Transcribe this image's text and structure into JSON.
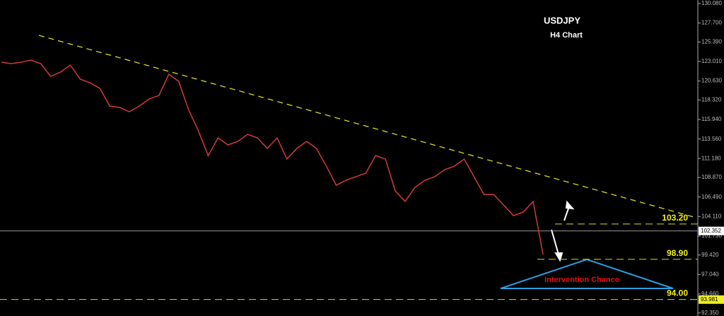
{
  "chart_data": {
    "type": "line",
    "title": "USDJPY",
    "subtitle": "H4 Chart",
    "annotation": "Intervention Chance",
    "series": [
      {
        "name": "USDJPY",
        "color": "#d23a3a",
        "values": [
          122.92,
          122.75,
          122.92,
          123.18,
          122.75,
          121.2,
          121.72,
          122.58,
          120.86,
          120.42,
          119.73,
          117.58,
          117.41,
          116.89,
          117.58,
          118.44,
          118.87,
          121.46,
          120.6,
          117.15,
          114.56,
          111.54,
          113.7,
          112.84,
          113.27,
          114.13,
          113.7,
          112.41,
          113.7,
          111.11,
          112.41,
          113.27,
          112.41,
          110.25,
          107.92,
          108.53,
          108.96,
          109.39,
          111.54,
          111.11,
          107.23,
          105.94,
          107.66,
          108.53,
          108.96,
          109.82,
          110.25,
          111.11,
          108.96,
          106.8,
          106.8,
          105.51,
          104.22,
          104.65,
          105.94,
          99.47
        ]
      }
    ],
    "trendline": [
      126.2,
      103.96
    ],
    "levels": [
      {
        "value": 103.2,
        "label": "103.20"
      },
      {
        "value": 98.9,
        "label": "98.90"
      },
      {
        "value": 94,
        "label": "94.00"
      }
    ],
    "price_markers": [
      102.352,
      93.981
    ],
    "ylim": [
      91.98,
      130.51
    ],
    "yticks": [
      {
        "value": 130.08,
        "label": "130.080"
      },
      {
        "value": 127.7,
        "label": "127.700"
      },
      {
        "value": 125.39,
        "label": "125.390"
      },
      {
        "value": 123.01,
        "label": "123.010"
      },
      {
        "value": 120.63,
        "label": "120.630"
      },
      {
        "value": 118.32,
        "label": "118.320"
      },
      {
        "value": 115.94,
        "label": "115.940"
      },
      {
        "value": 113.56,
        "label": "113.560"
      },
      {
        "value": 111.18,
        "label": "111.180"
      },
      {
        "value": 108.87,
        "label": "108.870"
      },
      {
        "value": 106.49,
        "label": "106.490"
      },
      {
        "value": 104.11,
        "label": "104.110"
      },
      {
        "value": 101.73,
        "label": "101.730"
      },
      {
        "value": 99.42,
        "label": "99.420"
      },
      {
        "value": 97.04,
        "label": "97.040"
      },
      {
        "value": 94.66,
        "label": "94.660"
      },
      {
        "value": 92.35,
        "label": "92.350"
      }
    ]
  }
}
